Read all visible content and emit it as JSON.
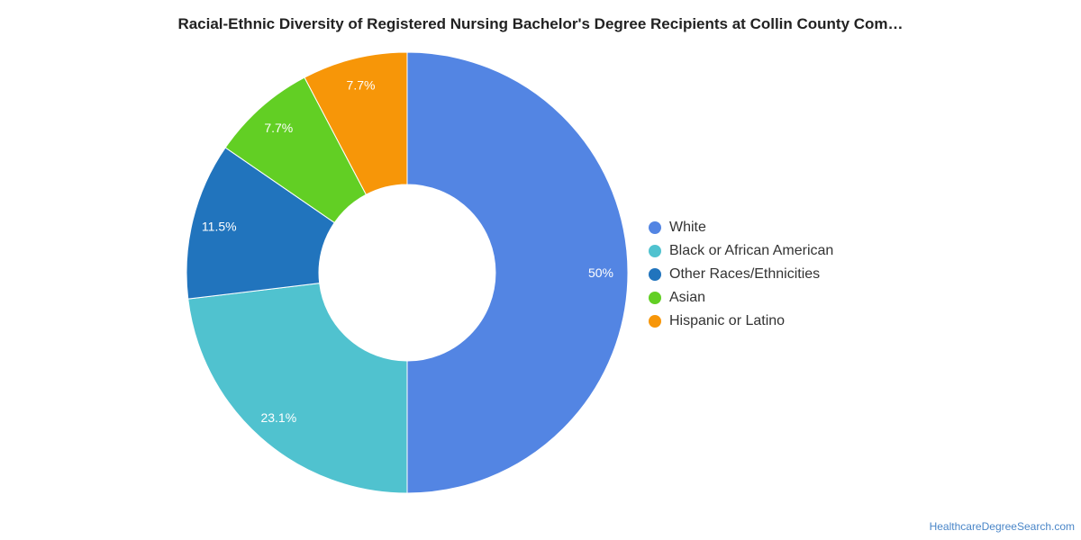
{
  "chart_data": {
    "type": "pie",
    "title": "Racial-Ethnic Diversity of Registered Nursing Bachelor's Degree Recipients at Collin County Com…",
    "hole": true,
    "legend_position": "right",
    "slices": [
      {
        "name": "White",
        "value": 50,
        "label": "50%",
        "color": "#5385e3"
      },
      {
        "name": "Black or African American",
        "value": 23.1,
        "label": "23.1%",
        "color": "#50c2cf"
      },
      {
        "name": "Other Races/Ethnicities",
        "value": 11.5,
        "label": "11.5%",
        "color": "#2174bd"
      },
      {
        "name": "Asian",
        "value": 7.7,
        "label": "7.7%",
        "color": "#62cf24"
      },
      {
        "name": "Hispanic or Latino",
        "value": 7.7,
        "label": "7.7%",
        "color": "#f79608"
      }
    ]
  },
  "footer": {
    "source": "HealthcareDegreeSearch.com"
  }
}
